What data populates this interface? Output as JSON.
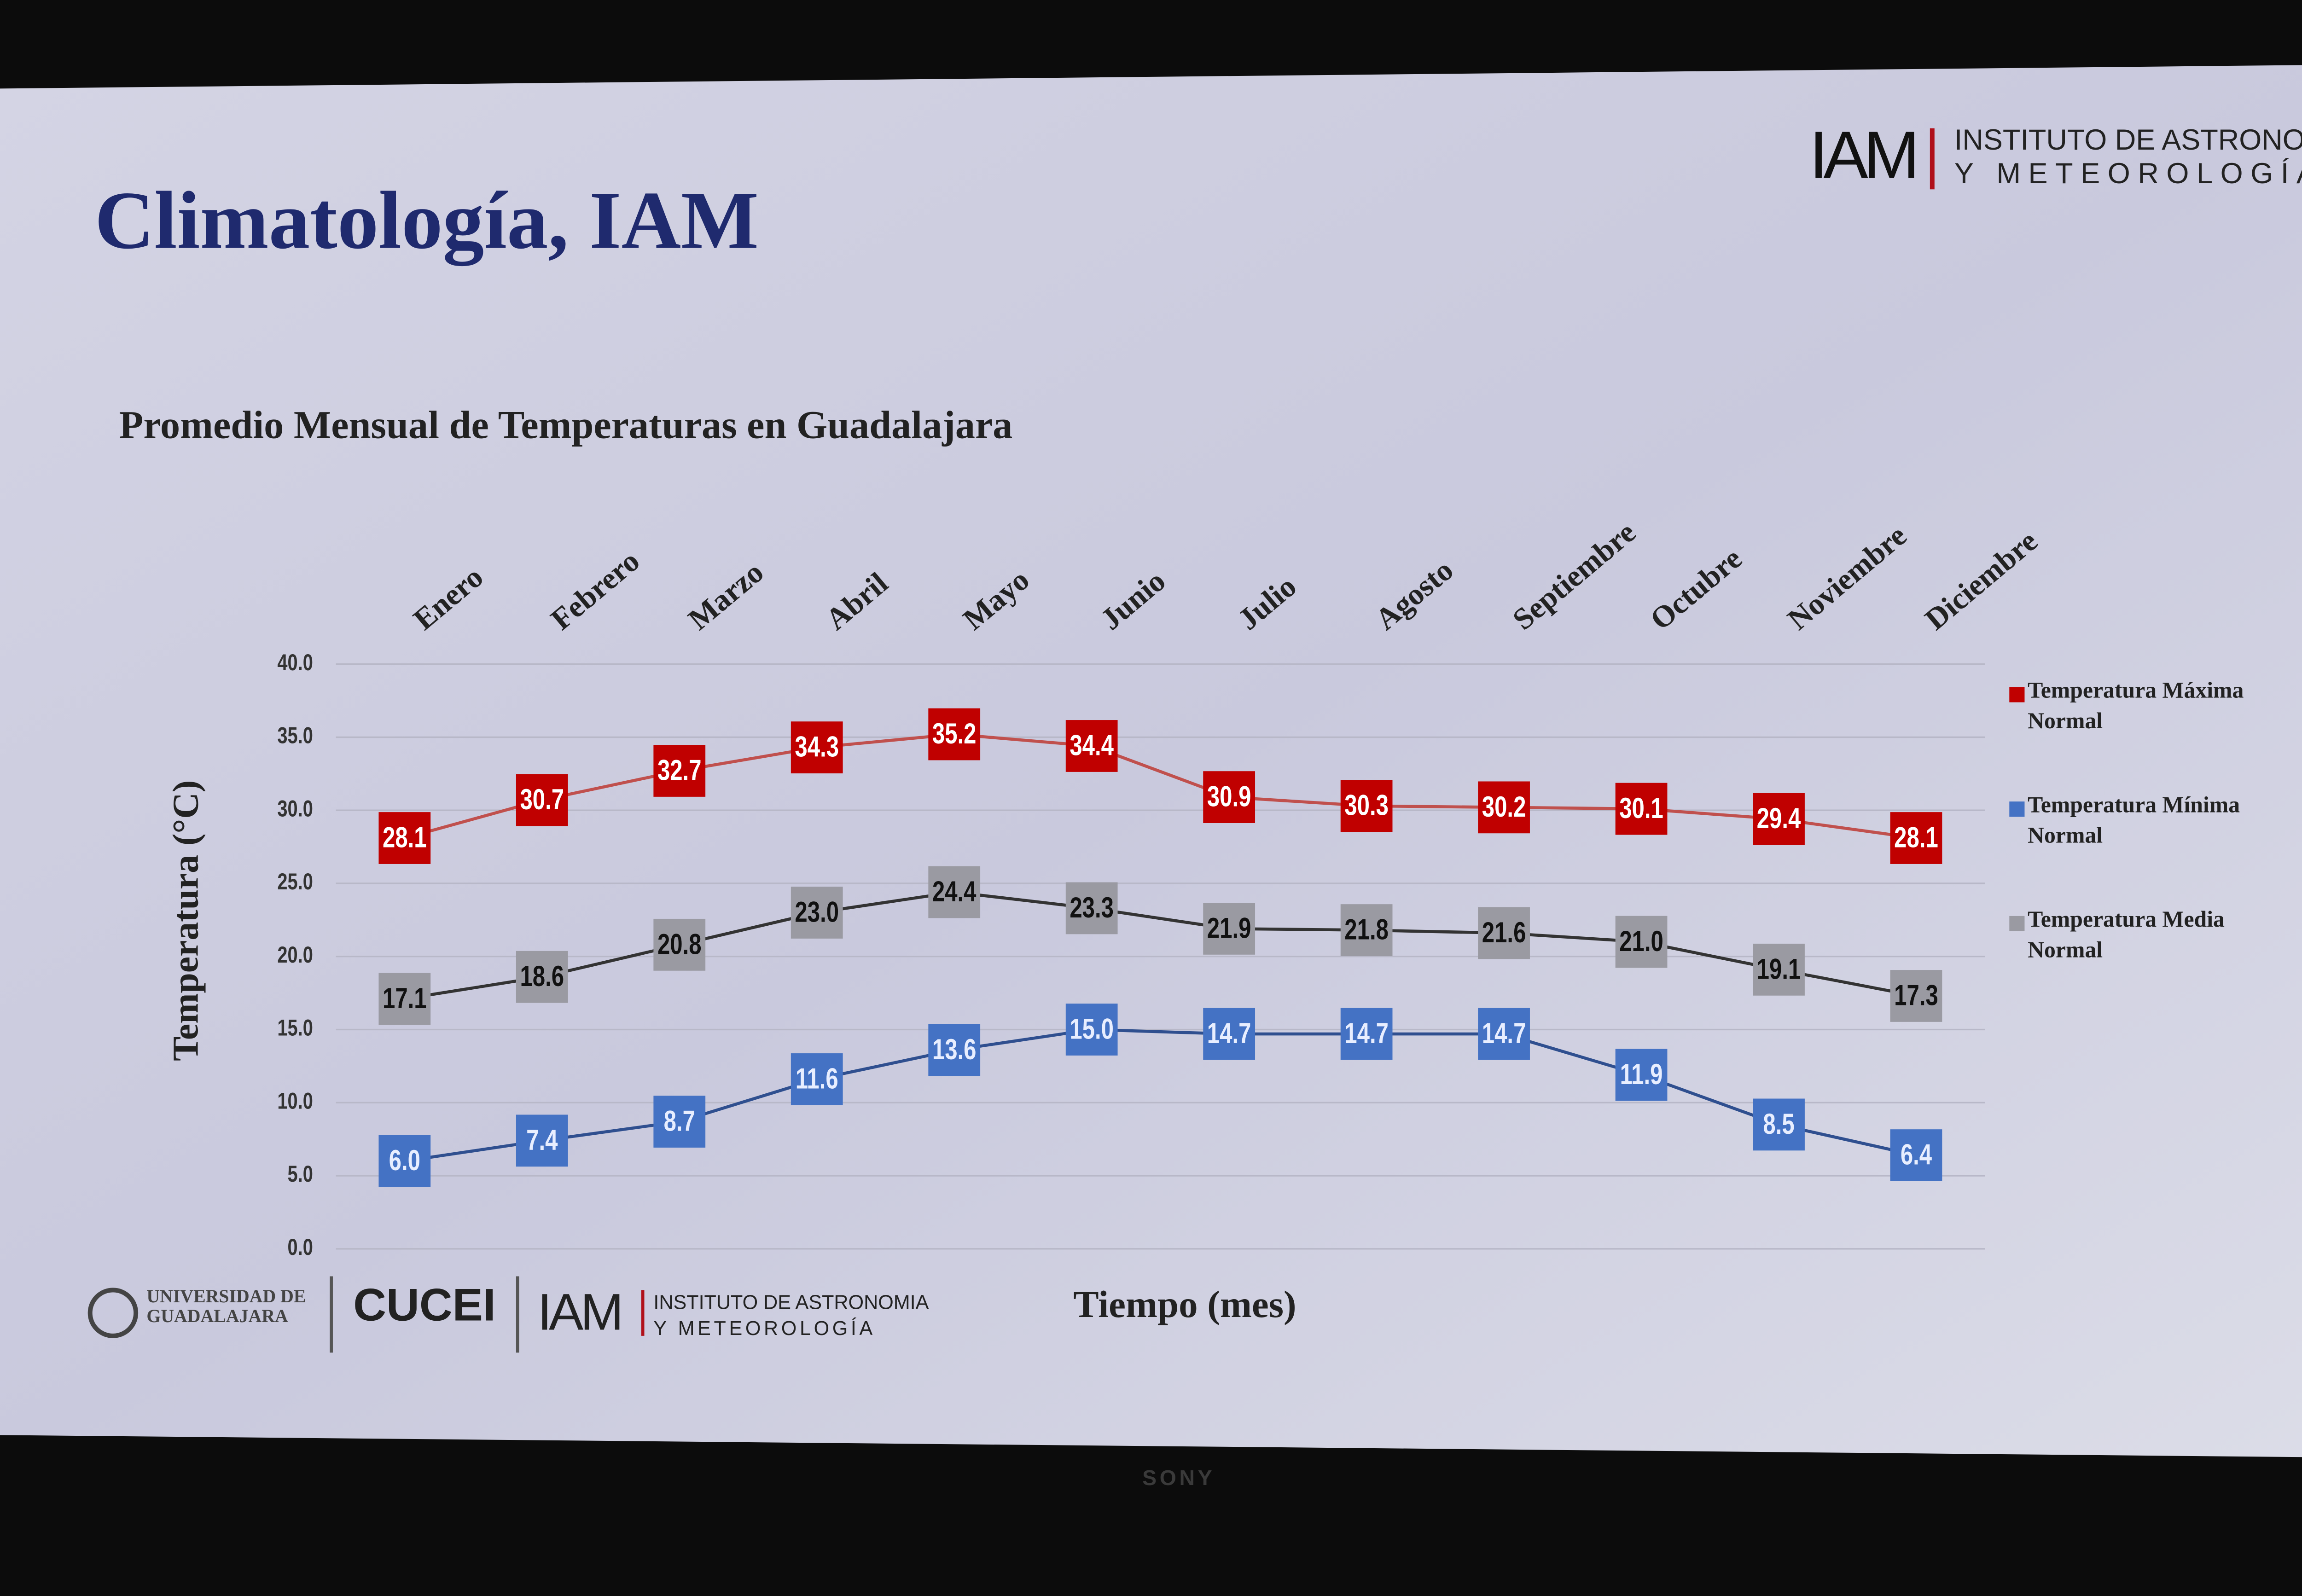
{
  "slide": {
    "title": "Climatología, IAM",
    "logo": {
      "mark": "IAM",
      "line1": "INSTITUTO DE ASTRONOMÍA",
      "line2": "Y METEOROLOGÍA"
    },
    "footer": {
      "university": "UNIVERSIDAD DE GUADALAJARA",
      "cucei": "CUCEI",
      "mark": "IAM",
      "line1": "INSTITUTO DE ASTRONOMIA",
      "line2": "Y METEOROLOGÍA"
    },
    "brand": "SONY"
  },
  "chart_data": {
    "type": "line",
    "title": "Promedio Mensual de Temperaturas en Guadalajara",
    "x_label": "Tiempo (mes)",
    "y_label": "Temperatura  (°C)",
    "categories": [
      "Enero",
      "Febrero",
      "Marzo",
      "Abril",
      "Mayo",
      "Junio",
      "Julio",
      "Agosto",
      "Septiembre",
      "Octubre",
      "Noviembre",
      "Diciembre"
    ],
    "series": [
      {
        "name": "Temperatura Máxima Normal",
        "color": "#c00000",
        "line_color": "#c0504d",
        "label_color": "#ffffff",
        "values": [
          28.1,
          30.7,
          32.7,
          34.3,
          35.2,
          34.4,
          30.9,
          30.3,
          30.2,
          30.1,
          29.4,
          28.1
        ],
        "value_labels": [
          "28.1",
          "30.7",
          "32.7",
          "34.3",
          "35.2",
          "34.4",
          "30.9",
          "30.3",
          "30.2",
          "30.1",
          "29.4",
          "28.1"
        ]
      },
      {
        "name": "Temperatura Mínima Normal",
        "color": "#4472c4",
        "line_color": "#2f4f8f",
        "label_color": "#e8eeff",
        "values": [
          6.0,
          7.4,
          8.7,
          11.6,
          13.6,
          15.0,
          14.7,
          14.7,
          14.7,
          11.9,
          8.5,
          6.4
        ],
        "value_labels": [
          "6.0",
          "7.4",
          "8.7",
          "11.6",
          "13.6",
          "15.0",
          "14.7",
          "14.7",
          "14.7",
          "11.9",
          "8.5",
          "6.4"
        ]
      },
      {
        "name": "Temperatura Media Normal",
        "color": "#9a9aa2",
        "line_color": "#333333",
        "label_color": "#111111",
        "values": [
          17.1,
          18.6,
          20.8,
          23.0,
          24.4,
          23.3,
          21.9,
          21.8,
          21.6,
          21.0,
          19.1,
          17.3
        ],
        "value_labels": [
          "17.1",
          "18.6",
          "20.8",
          "23.0",
          "24.4",
          "23.3",
          "21.9",
          "21.8",
          "21.6",
          "21.0",
          "19.1",
          "17.3"
        ]
      }
    ],
    "ylim": [
      0,
      40
    ],
    "yticks": [
      {
        "value": 0,
        "label": "0.0"
      },
      {
        "value": 5,
        "label": "5.0"
      },
      {
        "value": 10,
        "label": "10.0"
      },
      {
        "value": 15,
        "label": "15.0"
      },
      {
        "value": 20,
        "label": "20.0"
      },
      {
        "value": 25,
        "label": "25.0"
      },
      {
        "value": 30,
        "label": "30.0"
      },
      {
        "value": 35,
        "label": "35.0"
      },
      {
        "value": 40,
        "label": "40.0"
      }
    ],
    "grid": true,
    "legend": "right"
  }
}
